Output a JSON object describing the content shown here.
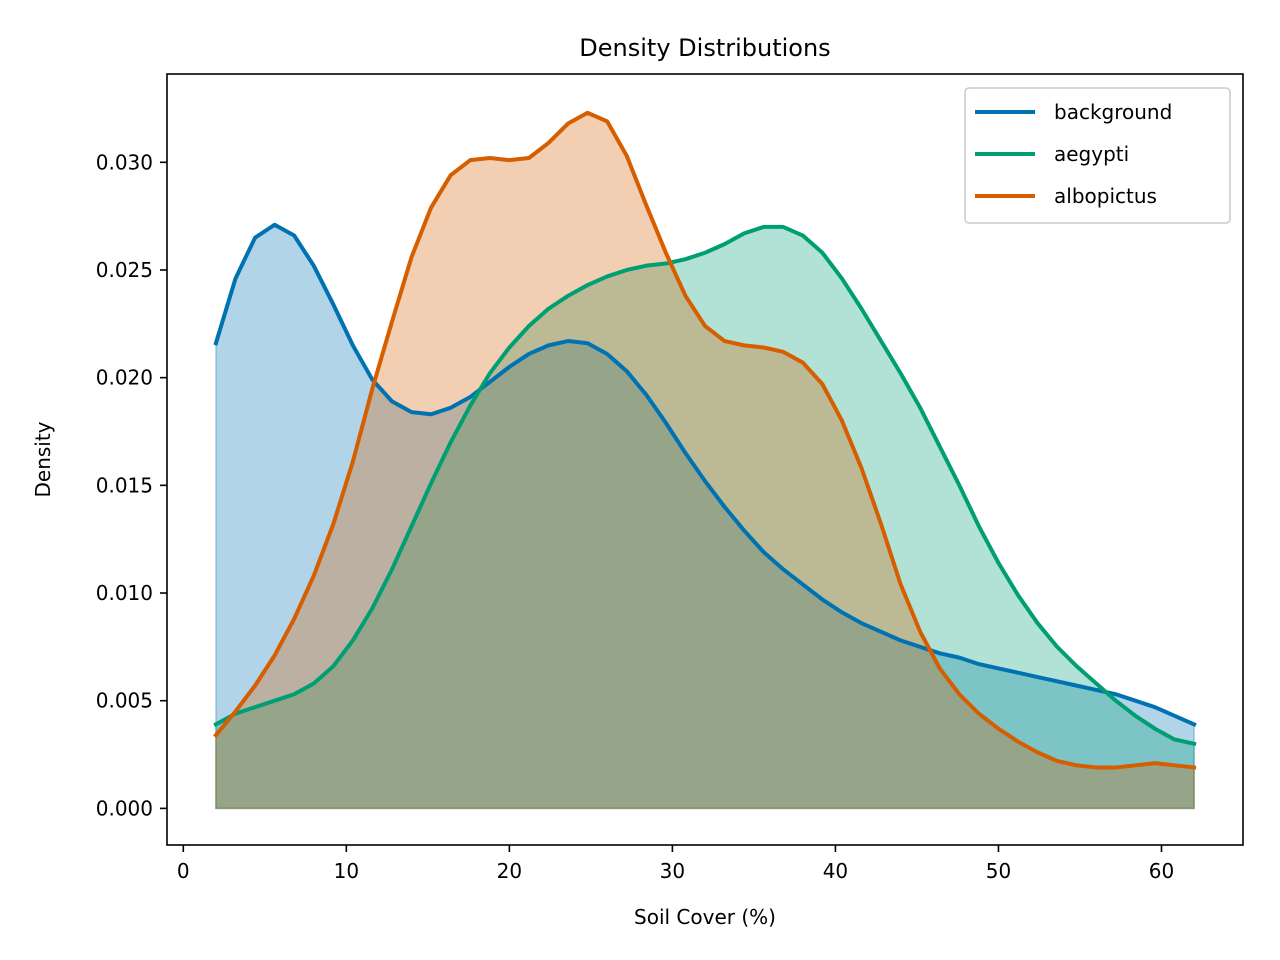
{
  "chart_data": {
    "type": "area",
    "title": "Density Distributions",
    "xlabel": "Soil Cover (%)",
    "ylabel": "Density",
    "xlim": [
      -1,
      65
    ],
    "ylim": [
      -0.0017,
      0.0341
    ],
    "xticks": [
      0,
      10,
      20,
      30,
      40,
      50,
      60
    ],
    "xtick_labels": [
      "0",
      "10",
      "20",
      "30",
      "40",
      "50",
      "60"
    ],
    "yticks": [
      0.0,
      0.005,
      0.01,
      0.015,
      0.02,
      0.025,
      0.03
    ],
    "ytick_labels": [
      "0.000",
      "0.005",
      "0.010",
      "0.015",
      "0.020",
      "0.025",
      "0.030"
    ],
    "grid": false,
    "legend_position": "top-right",
    "series": [
      {
        "name": "background",
        "color": "#0072B2",
        "x": [
          2,
          3.2,
          4.4,
          5.6,
          6.8,
          8,
          9.2,
          10.4,
          11.6,
          12.8,
          14,
          15.2,
          16.4,
          17.6,
          18.8,
          20,
          21.2,
          22.4,
          23.6,
          24.8,
          26,
          27.2,
          28.4,
          29.6,
          30.8,
          32,
          33.2,
          34.4,
          35.6,
          36.8,
          38,
          39.2,
          40.4,
          41.6,
          42.8,
          44,
          45.2,
          46.4,
          47.6,
          48.8,
          50,
          51.2,
          52.4,
          53.6,
          54.8,
          56,
          57.2,
          58.4,
          59.6,
          60.8,
          62
        ],
        "y": [
          0.0216,
          0.0246,
          0.0265,
          0.0271,
          0.0266,
          0.0252,
          0.0234,
          0.0215,
          0.0199,
          0.0189,
          0.0184,
          0.0183,
          0.0186,
          0.0191,
          0.0198,
          0.0205,
          0.0211,
          0.0215,
          0.0217,
          0.0216,
          0.0211,
          0.0203,
          0.0192,
          0.0179,
          0.0165,
          0.0152,
          0.014,
          0.0129,
          0.0119,
          0.0111,
          0.0104,
          0.0097,
          0.0091,
          0.0086,
          0.0082,
          0.0078,
          0.0075,
          0.0072,
          0.007,
          0.0067,
          0.0065,
          0.0063,
          0.0061,
          0.0059,
          0.0057,
          0.0055,
          0.0053,
          0.005,
          0.0047,
          0.0043,
          0.0039
        ]
      },
      {
        "name": "aegypti",
        "color": "#009E73",
        "x": [
          2,
          3.2,
          4.4,
          5.6,
          6.8,
          8,
          9.2,
          10.4,
          11.6,
          12.8,
          14,
          15.2,
          16.4,
          17.6,
          18.8,
          20,
          21.2,
          22.4,
          23.6,
          24.8,
          26,
          27.2,
          28.4,
          29.6,
          30.8,
          32,
          33.2,
          34.4,
          35.6,
          36.8,
          38,
          39.2,
          40.4,
          41.6,
          42.8,
          44,
          45.2,
          46.4,
          47.6,
          48.8,
          50,
          51.2,
          52.4,
          53.6,
          54.8,
          56,
          57.2,
          58.4,
          59.6,
          60.8,
          62
        ],
        "y": [
          0.0039,
          0.0044,
          0.0047,
          0.005,
          0.0053,
          0.0058,
          0.0066,
          0.0078,
          0.0093,
          0.0111,
          0.0131,
          0.0151,
          0.017,
          0.0187,
          0.0202,
          0.0214,
          0.0224,
          0.0232,
          0.0238,
          0.0243,
          0.0247,
          0.025,
          0.0252,
          0.0253,
          0.0255,
          0.0258,
          0.0262,
          0.0267,
          0.027,
          0.027,
          0.0266,
          0.0258,
          0.0246,
          0.0232,
          0.0217,
          0.0202,
          0.0186,
          0.0168,
          0.015,
          0.0131,
          0.0114,
          0.0099,
          0.0086,
          0.0075,
          0.0066,
          0.0058,
          0.005,
          0.0043,
          0.0037,
          0.0032,
          0.003
        ]
      },
      {
        "name": "albopictus",
        "color": "#D55E00",
        "x": [
          2,
          3.2,
          4.4,
          5.6,
          6.8,
          8,
          9.2,
          10.4,
          11.6,
          12.8,
          14,
          15.2,
          16.4,
          17.6,
          18.8,
          20,
          21.2,
          22.4,
          23.6,
          24.8,
          26,
          27.2,
          28.4,
          29.6,
          30.8,
          32,
          33.2,
          34.4,
          35.6,
          36.8,
          38,
          39.2,
          40.4,
          41.6,
          42.8,
          44,
          45.2,
          46.4,
          47.6,
          48.8,
          50,
          51.2,
          52.4,
          53.6,
          54.8,
          56,
          57.2,
          58.4,
          59.6,
          60.8,
          62
        ],
        "y": [
          0.0034,
          0.0045,
          0.0057,
          0.0071,
          0.0088,
          0.0108,
          0.0132,
          0.0161,
          0.0195,
          0.0226,
          0.0256,
          0.0279,
          0.0294,
          0.0301,
          0.0302,
          0.0301,
          0.0302,
          0.0309,
          0.0318,
          0.0323,
          0.0319,
          0.0303,
          0.028,
          0.0258,
          0.0238,
          0.0224,
          0.0217,
          0.0215,
          0.0214,
          0.0212,
          0.0207,
          0.0197,
          0.018,
          0.0158,
          0.0132,
          0.0104,
          0.0082,
          0.0065,
          0.0053,
          0.0044,
          0.0037,
          0.0031,
          0.0026,
          0.0022,
          0.002,
          0.0019,
          0.0019,
          0.002,
          0.0021,
          0.002,
          0.0019
        ]
      }
    ]
  }
}
